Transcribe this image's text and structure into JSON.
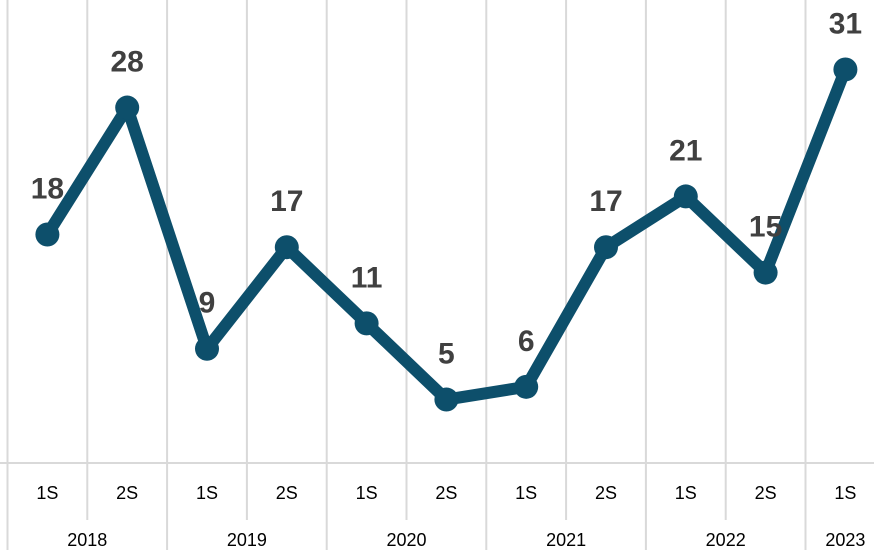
{
  "chart_data": {
    "type": "line",
    "categories": [
      "1S",
      "2S",
      "1S",
      "2S",
      "1S",
      "2S",
      "1S",
      "2S",
      "1S",
      "2S",
      "1S"
    ],
    "groups": [
      "2018",
      "2019",
      "2020",
      "2021",
      "2022",
      "2023"
    ],
    "series": [
      {
        "color": "#0d4f6b",
        "values": [
          18,
          28,
          9,
          17,
          11,
          5,
          6,
          17,
          21,
          15,
          31
        ]
      }
    ],
    "ylim": [
      0,
      36
    ],
    "grid": true
  }
}
